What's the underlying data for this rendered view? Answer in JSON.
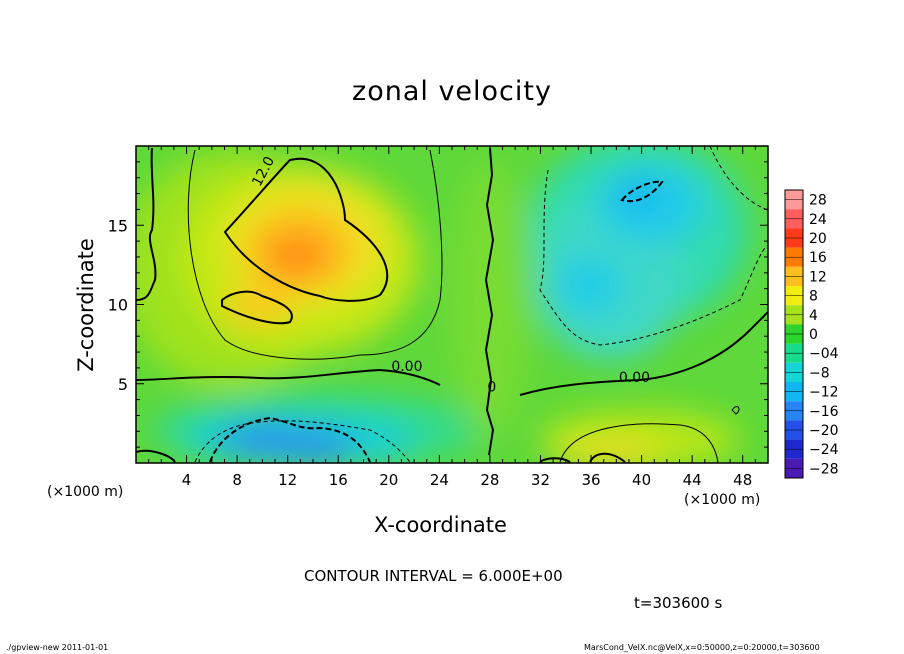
{
  "chart_data": {
    "type": "heatmap",
    "title": "zonal velocity",
    "xlabel": "X-coordinate",
    "ylabel": "Z-coordinate",
    "x_unit_left": "(×1000 m)",
    "x_unit_right": "(×1000 m)",
    "xlim": [
      0,
      50
    ],
    "ylim": [
      0,
      20
    ],
    "x_ticks": [
      4,
      8,
      12,
      16,
      20,
      24,
      28,
      32,
      36,
      40,
      44,
      48
    ],
    "y_ticks": [
      5,
      10,
      15
    ],
    "colorbar": {
      "levels": [
        28,
        24,
        20,
        16,
        12,
        8,
        4,
        0,
        -4,
        -8,
        -12,
        -16,
        -20,
        -24,
        -28
      ],
      "labels": [
        "28",
        "24",
        "20",
        "16",
        "12",
        "8",
        "4",
        "0",
        "−04",
        "−8",
        "−12",
        "−16",
        "−20",
        "−24",
        "−28"
      ],
      "colors": [
        "#ff9a9a",
        "#ff5e5e",
        "#ff3a1a",
        "#ff7a00",
        "#ffbe1f",
        "#f0ee10",
        "#a6e21e",
        "#2ed42e",
        "#18dc8a",
        "#15d6d6",
        "#12b6f0",
        "#2684f4",
        "#2450e8",
        "#1f28cc",
        "#4a1ab2"
      ]
    },
    "contour_labels": [
      {
        "text": "12.0",
        "x": 9.8,
        "z": 17.4
      },
      {
        "text": "0.00",
        "x": 20.2,
        "z": 5.8
      },
      {
        "text": "0.00",
        "x": 38.2,
        "z": 5.1
      },
      {
        "text": "0",
        "x": 27.8,
        "z": 4.5
      }
    ],
    "features": [
      {
        "kind": "max",
        "x": 13,
        "z": 13,
        "value": 16
      },
      {
        "kind": "max",
        "x": 10,
        "z": 9.5,
        "value": 12
      },
      {
        "kind": "min",
        "x": 11,
        "z": 1.4,
        "value": -16
      },
      {
        "kind": "min",
        "x": 15,
        "z": 1.4,
        "value": -16
      },
      {
        "kind": "min",
        "x": 40,
        "z": 17.2,
        "value": -8
      },
      {
        "kind": "min",
        "x": 38,
        "z": 11,
        "value": -8
      },
      {
        "kind": "max",
        "x": 39,
        "z": 1.2,
        "value": 10
      }
    ],
    "contour_interval": "CONTOUR INTERVAL = 6.000E+00",
    "time_label": "t=303600 s"
  },
  "footer": {
    "left": "./gpview-new  2011-01-01",
    "right": "MarsCond_VelX.nc@VelX,x=0:50000,z=0:20000,t=303600"
  }
}
